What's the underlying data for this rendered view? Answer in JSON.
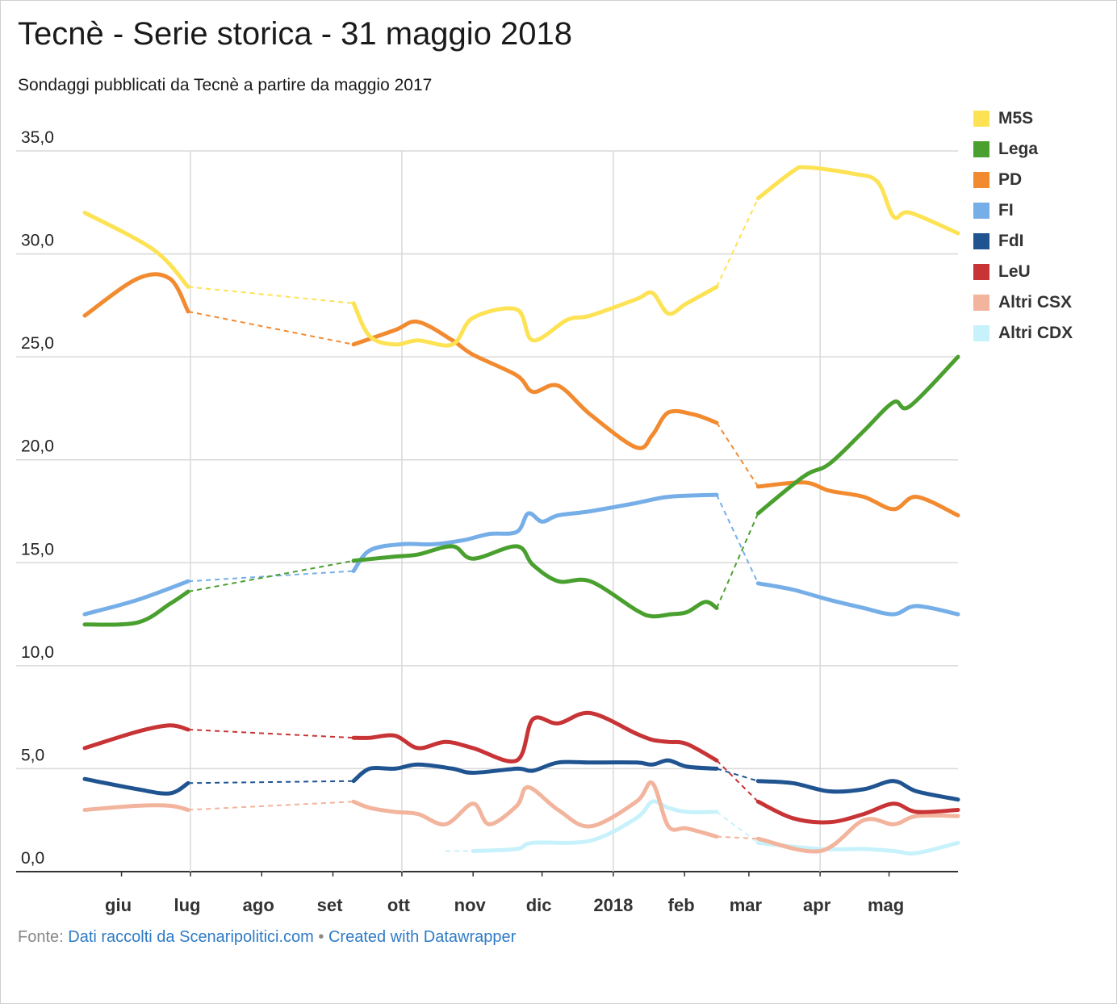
{
  "title": "Tecnè - Serie storica - 31 maggio 2018",
  "subtitle": "Sondaggi pubblicati da Tecnè a partire da maggio 2017",
  "footer": {
    "prefix": "Fonte:",
    "source_link": "Dati raccolti da Scenaripolitici.com",
    "separator": "•",
    "credit_link": "Created with Datawrapper"
  },
  "chart_data": {
    "type": "line",
    "ylim": [
      0,
      35
    ],
    "y_ticks": [
      "35,0",
      "30,0",
      "25,0",
      "20,0",
      "15,0",
      "10,0",
      "5,0",
      "0,0"
    ],
    "x_ticks": [
      "giu",
      "lug",
      "ago",
      "set",
      "ott",
      "nov",
      "dic",
      "2018",
      "feb",
      "mar",
      "apr",
      "mag"
    ],
    "x_domain": [
      "2017-05-16",
      "2018-05-31"
    ],
    "grid": true,
    "legend_position": "right",
    "note": "dashed segments = periods without surveys",
    "series": [
      {
        "name": "M5S",
        "color": "#fde254",
        "points": [
          [
            "2017-05-16",
            32.0
          ],
          [
            "2017-06-15",
            30.2
          ],
          [
            "2017-06-30",
            28.4
          ],
          [
            "2017-09-10",
            27.6
          ],
          [
            "2017-09-17",
            26.0
          ],
          [
            "2017-09-28",
            25.6
          ],
          [
            "2017-10-08",
            25.8
          ],
          [
            "2017-10-23",
            25.6
          ],
          [
            "2017-11-01",
            26.9
          ],
          [
            "2017-11-20",
            27.3
          ],
          [
            "2017-11-27",
            25.8
          ],
          [
            "2017-12-12",
            26.8
          ],
          [
            "2017-12-22",
            27.0
          ],
          [
            "2018-01-11",
            27.8
          ],
          [
            "2018-01-18",
            28.1
          ],
          [
            "2018-01-25",
            27.1
          ],
          [
            "2018-02-02",
            27.6
          ],
          [
            "2018-02-15",
            28.4
          ],
          [
            "2018-03-05",
            32.7
          ],
          [
            "2018-03-20",
            34.0
          ],
          [
            "2018-03-26",
            34.2
          ],
          [
            "2018-04-15",
            33.9
          ],
          [
            "2018-04-26",
            33.5
          ],
          [
            "2018-05-03",
            31.8
          ],
          [
            "2018-05-10",
            32.0
          ],
          [
            "2018-05-31",
            31.0
          ]
        ]
      },
      {
        "name": "Lega",
        "color": "#4aa02f",
        "points": [
          [
            "2017-05-16",
            12.0
          ],
          [
            "2017-06-08",
            12.1
          ],
          [
            "2017-06-22",
            13.0
          ],
          [
            "2017-06-30",
            13.6
          ],
          [
            "2017-09-10",
            15.1
          ],
          [
            "2017-09-28",
            15.3
          ],
          [
            "2017-10-08",
            15.4
          ],
          [
            "2017-10-23",
            15.8
          ],
          [
            "2017-11-01",
            15.2
          ],
          [
            "2017-11-20",
            15.8
          ],
          [
            "2017-11-27",
            14.9
          ],
          [
            "2017-12-08",
            14.1
          ],
          [
            "2017-12-22",
            14.1
          ],
          [
            "2018-01-11",
            12.7
          ],
          [
            "2018-01-18",
            12.4
          ],
          [
            "2018-01-26",
            12.5
          ],
          [
            "2018-02-02",
            12.6
          ],
          [
            "2018-02-10",
            13.1
          ],
          [
            "2018-02-15",
            12.8
          ],
          [
            "2018-03-05",
            17.4
          ],
          [
            "2018-03-25",
            19.2
          ],
          [
            "2018-04-05",
            19.8
          ],
          [
            "2018-04-20",
            21.4
          ],
          [
            "2018-05-03",
            22.8
          ],
          [
            "2018-05-10",
            22.6
          ],
          [
            "2018-05-31",
            25.0
          ]
        ]
      },
      {
        "name": "PD",
        "color": "#f28a30",
        "points": [
          [
            "2017-05-16",
            27.0
          ],
          [
            "2017-06-08",
            28.8
          ],
          [
            "2017-06-22",
            28.8
          ],
          [
            "2017-06-30",
            27.2
          ],
          [
            "2017-09-10",
            25.6
          ],
          [
            "2017-09-28",
            26.3
          ],
          [
            "2017-10-08",
            26.7
          ],
          [
            "2017-10-23",
            25.8
          ],
          [
            "2017-11-01",
            25.1
          ],
          [
            "2017-11-20",
            24.1
          ],
          [
            "2017-11-27",
            23.3
          ],
          [
            "2017-12-08",
            23.6
          ],
          [
            "2017-12-22",
            22.2
          ],
          [
            "2018-01-11",
            20.6
          ],
          [
            "2018-01-18",
            21.2
          ],
          [
            "2018-01-25",
            22.3
          ],
          [
            "2018-02-05",
            22.2
          ],
          [
            "2018-02-15",
            21.8
          ],
          [
            "2018-03-05",
            18.7
          ],
          [
            "2018-03-25",
            18.9
          ],
          [
            "2018-04-05",
            18.5
          ],
          [
            "2018-04-20",
            18.2
          ],
          [
            "2018-05-03",
            17.6
          ],
          [
            "2018-05-13",
            18.2
          ],
          [
            "2018-05-31",
            17.3
          ]
        ]
      },
      {
        "name": "FI",
        "color": "#76aee8",
        "points": [
          [
            "2017-05-16",
            12.5
          ],
          [
            "2017-06-08",
            13.2
          ],
          [
            "2017-06-30",
            14.1
          ],
          [
            "2017-09-10",
            14.6
          ],
          [
            "2017-09-17",
            15.6
          ],
          [
            "2017-10-01",
            15.9
          ],
          [
            "2017-10-15",
            15.9
          ],
          [
            "2017-10-28",
            16.1
          ],
          [
            "2017-11-08",
            16.4
          ],
          [
            "2017-11-20",
            16.5
          ],
          [
            "2017-11-25",
            17.4
          ],
          [
            "2017-12-01",
            17.0
          ],
          [
            "2017-12-08",
            17.3
          ],
          [
            "2017-12-22",
            17.5
          ],
          [
            "2018-01-11",
            17.9
          ],
          [
            "2018-01-25",
            18.2
          ],
          [
            "2018-02-15",
            18.3
          ],
          [
            "2018-03-05",
            14.0
          ],
          [
            "2018-03-20",
            13.7
          ],
          [
            "2018-04-05",
            13.2
          ],
          [
            "2018-04-20",
            12.8
          ],
          [
            "2018-05-03",
            12.5
          ],
          [
            "2018-05-13",
            12.9
          ],
          [
            "2018-05-31",
            12.5
          ]
        ]
      },
      {
        "name": "FdI",
        "color": "#205491",
        "points": [
          [
            "2017-05-16",
            4.5
          ],
          [
            "2017-06-08",
            4.0
          ],
          [
            "2017-06-22",
            3.8
          ],
          [
            "2017-06-30",
            4.3
          ],
          [
            "2017-09-10",
            4.4
          ],
          [
            "2017-09-17",
            5.0
          ],
          [
            "2017-09-28",
            5.0
          ],
          [
            "2017-10-08",
            5.2
          ],
          [
            "2017-10-23",
            5.0
          ],
          [
            "2017-11-01",
            4.8
          ],
          [
            "2017-11-20",
            5.0
          ],
          [
            "2017-11-27",
            4.9
          ],
          [
            "2017-12-08",
            5.3
          ],
          [
            "2017-12-22",
            5.3
          ],
          [
            "2018-01-11",
            5.3
          ],
          [
            "2018-01-18",
            5.2
          ],
          [
            "2018-01-25",
            5.4
          ],
          [
            "2018-02-02",
            5.1
          ],
          [
            "2018-02-15",
            5.0
          ],
          [
            "2018-03-05",
            4.4
          ],
          [
            "2018-03-20",
            4.3
          ],
          [
            "2018-04-05",
            3.9
          ],
          [
            "2018-04-20",
            4.0
          ],
          [
            "2018-05-03",
            4.4
          ],
          [
            "2018-05-13",
            3.9
          ],
          [
            "2018-05-31",
            3.5
          ]
        ]
      },
      {
        "name": "LeU",
        "color": "#c83436",
        "points": [
          [
            "2017-05-16",
            6.0
          ],
          [
            "2017-06-08",
            6.8
          ],
          [
            "2017-06-22",
            7.1
          ],
          [
            "2017-06-30",
            6.9
          ],
          [
            "2017-09-10",
            6.5
          ],
          [
            "2017-09-17",
            6.5
          ],
          [
            "2017-09-28",
            6.6
          ],
          [
            "2017-10-08",
            6.0
          ],
          [
            "2017-10-20",
            6.3
          ],
          [
            "2017-11-01",
            6.0
          ],
          [
            "2017-11-20",
            5.4
          ],
          [
            "2017-11-27",
            7.4
          ],
          [
            "2017-12-08",
            7.2
          ],
          [
            "2017-12-22",
            7.7
          ],
          [
            "2018-01-11",
            6.7
          ],
          [
            "2018-01-18",
            6.4
          ],
          [
            "2018-01-25",
            6.3
          ],
          [
            "2018-02-02",
            6.2
          ],
          [
            "2018-02-15",
            5.4
          ],
          [
            "2018-03-05",
            3.4
          ],
          [
            "2018-03-20",
            2.6
          ],
          [
            "2018-04-05",
            2.4
          ],
          [
            "2018-04-20",
            2.8
          ],
          [
            "2018-05-03",
            3.3
          ],
          [
            "2018-05-13",
            2.9
          ],
          [
            "2018-05-31",
            3.0
          ]
        ]
      },
      {
        "name": "Altri CSX",
        "color": "#f2b49c",
        "points": [
          [
            "2017-05-16",
            3.0
          ],
          [
            "2017-06-08",
            3.2
          ],
          [
            "2017-06-22",
            3.2
          ],
          [
            "2017-06-30",
            3.0
          ],
          [
            "2017-09-10",
            3.4
          ],
          [
            "2017-09-17",
            3.1
          ],
          [
            "2017-09-28",
            2.9
          ],
          [
            "2017-10-08",
            2.8
          ],
          [
            "2017-10-20",
            2.3
          ],
          [
            "2017-11-01",
            3.3
          ],
          [
            "2017-11-08",
            2.3
          ],
          [
            "2017-11-20",
            3.2
          ],
          [
            "2017-11-25",
            4.1
          ],
          [
            "2017-12-08",
            3.0
          ],
          [
            "2017-12-22",
            2.2
          ],
          [
            "2018-01-11",
            3.4
          ],
          [
            "2018-01-18",
            4.3
          ],
          [
            "2018-01-25",
            2.2
          ],
          [
            "2018-02-02",
            2.1
          ],
          [
            "2018-02-15",
            1.7
          ],
          [
            "2018-03-05",
            1.6
          ],
          [
            "2018-04-01",
            1.0
          ],
          [
            "2018-04-20",
            2.5
          ],
          [
            "2018-05-03",
            2.3
          ],
          [
            "2018-05-13",
            2.7
          ],
          [
            "2018-05-31",
            2.7
          ]
        ]
      },
      {
        "name": "Altri CDX",
        "color": "#c8f2fb",
        "points": [
          [
            "2017-10-20",
            1.0
          ],
          [
            "2017-11-01",
            1.0
          ],
          [
            "2017-11-20",
            1.1
          ],
          [
            "2017-11-27",
            1.4
          ],
          [
            "2017-12-22",
            1.5
          ],
          [
            "2018-01-11",
            2.6
          ],
          [
            "2018-01-18",
            3.4
          ],
          [
            "2018-01-25",
            3.1
          ],
          [
            "2018-02-02",
            2.9
          ],
          [
            "2018-02-15",
            2.9
          ],
          [
            "2018-03-05",
            1.4
          ],
          [
            "2018-04-01",
            1.1
          ],
          [
            "2018-04-20",
            1.1
          ],
          [
            "2018-05-03",
            1.0
          ],
          [
            "2018-05-13",
            0.9
          ],
          [
            "2018-05-31",
            1.4
          ]
        ],
        "gaps_after": [
          "2017-10-20",
          "2018-02-15"
        ]
      }
    ],
    "dashed_gaps": {
      "M5S": [
        "2017-06-30",
        "2018-02-15"
      ],
      "Lega": [
        "2017-06-30",
        "2018-02-15"
      ],
      "PD": [
        "2017-06-30",
        "2018-02-15"
      ],
      "FI": [
        "2017-06-30",
        "2018-02-15"
      ],
      "FdI": [
        "2017-06-30",
        "2018-02-15"
      ],
      "LeU": [
        "2017-06-30",
        "2018-02-15"
      ],
      "Altri CSX": [
        "2017-06-30",
        "2018-02-15"
      ],
      "Altri CDX": [
        "2017-10-20",
        "2018-02-15"
      ]
    }
  },
  "colors": {
    "grid": "#d9d9d9",
    "axis": "#333333",
    "link": "#2f7bc6"
  }
}
